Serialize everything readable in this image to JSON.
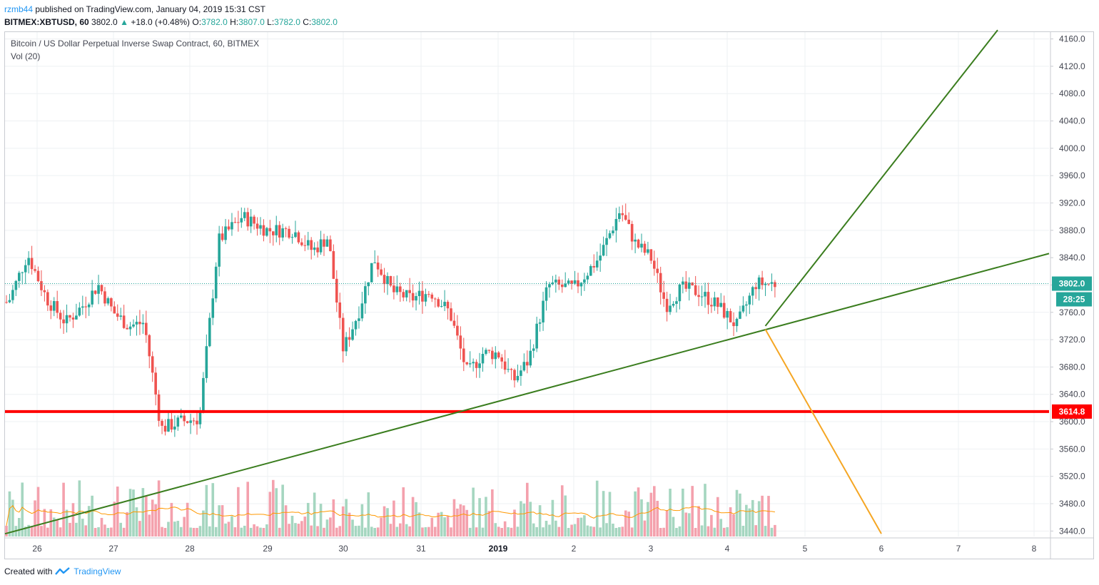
{
  "header": {
    "user": "rzmb44",
    "published_text": "published on TradingView.com, January 04, 2019 15:31 CST",
    "symbol": "BITMEX:XBTUSD, 60",
    "last": "3802.0",
    "change": "+18.0 (+0.48%)",
    "o_label": "O:",
    "o_value": "3782.0",
    "h_label": "H:",
    "h_value": "3807.0",
    "l_label": "L:",
    "l_value": "3782.0",
    "c_label": "C:",
    "c_value": "3802.0"
  },
  "legend": {
    "title": "Bitcoin / US Dollar Perpetual Inverse Swap Contract, 60, BITMEX",
    "indicator": "Vol (20)"
  },
  "footer": {
    "created_with": "Created with",
    "brand": "TradingView"
  },
  "colors": {
    "up": "#26a69a",
    "down": "#ef5350",
    "up_volume": "#a5d6c0",
    "down_volume": "#f4a1ad",
    "support_line": "#ff0000",
    "trendline": "#3a7d1e",
    "projection": "#f5a623",
    "grid": "#eef0f3",
    "axis_text": "#434651"
  },
  "chart_data": {
    "type": "candlestick",
    "title": "Bitcoin / US Dollar Perpetual Inverse Swap Contract, 60, BITMEX",
    "y_axis": {
      "ticks": [
        3440.0,
        3480.0,
        3520.0,
        3560.0,
        3600.0,
        3640.0,
        3680.0,
        3720.0,
        3760.0,
        3800.0,
        3840.0,
        3880.0,
        3920.0,
        3960.0,
        4000.0,
        4040.0,
        4080.0,
        4120.0,
        4160.0
      ],
      "range": [
        3432,
        4170
      ]
    },
    "x_axis": {
      "ticks": [
        "26",
        "27",
        "28",
        "29",
        "30",
        "31",
        "2019",
        "2",
        "3",
        "4",
        "5",
        "6",
        "7",
        "8"
      ],
      "bold_ticks": [
        "2019"
      ]
    },
    "last_price": {
      "value": 3802.0,
      "label": "3802.0",
      "countdown": "28:25"
    },
    "horizontal_level": {
      "value": 3614.8,
      "label": "3614.8"
    },
    "candle_path": [
      [
        "26",
        3775
      ],
      [
        "26",
        3845
      ],
      [
        "26",
        3780
      ],
      [
        "26",
        3745
      ],
      [
        "27",
        3770
      ],
      [
        "27",
        3800
      ],
      [
        "27",
        3760
      ],
      [
        "27",
        3740
      ],
      [
        "27",
        3745
      ],
      [
        "28",
        3590
      ],
      [
        "28",
        3600
      ],
      [
        "28",
        3605
      ],
      [
        "28",
        3865
      ],
      [
        "29",
        3900
      ],
      [
        "29",
        3880
      ],
      [
        "29",
        3880
      ],
      [
        "30",
        3850
      ],
      [
        "30",
        3870
      ],
      [
        "30",
        3705
      ],
      [
        "30",
        3760
      ],
      [
        "30",
        3840
      ],
      [
        "31",
        3790
      ],
      [
        "31",
        3780
      ],
      [
        "31",
        3790
      ],
      [
        "31",
        3760
      ],
      [
        "2019",
        3670
      ],
      [
        "2019",
        3700
      ],
      [
        "2019",
        3700
      ],
      [
        "2019",
        3660
      ],
      [
        "2019",
        3690
      ],
      [
        "2",
        3800
      ],
      [
        "2",
        3795
      ],
      [
        "2",
        3840
      ],
      [
        "3",
        3910
      ],
      [
        "3",
        3860
      ],
      [
        "3",
        3840
      ],
      [
        "3",
        3770
      ],
      [
        "3",
        3795
      ],
      [
        "4",
        3790
      ],
      [
        "4",
        3770
      ],
      [
        "4",
        3740
      ],
      [
        "4",
        3802
      ]
    ],
    "trendlines": [
      {
        "name": "rising-support",
        "from": [
          "26",
          3436
        ],
        "to": [
          "8",
          3846
        ]
      },
      {
        "name": "steep-upward",
        "from": [
          "4",
          3740
        ],
        "to": [
          "7",
          4173
        ]
      },
      {
        "name": "downward-projection",
        "from": [
          "4",
          3735
        ],
        "to": [
          "6",
          3436
        ]
      }
    ],
    "volume": {
      "label": "Vol (20)"
    }
  }
}
